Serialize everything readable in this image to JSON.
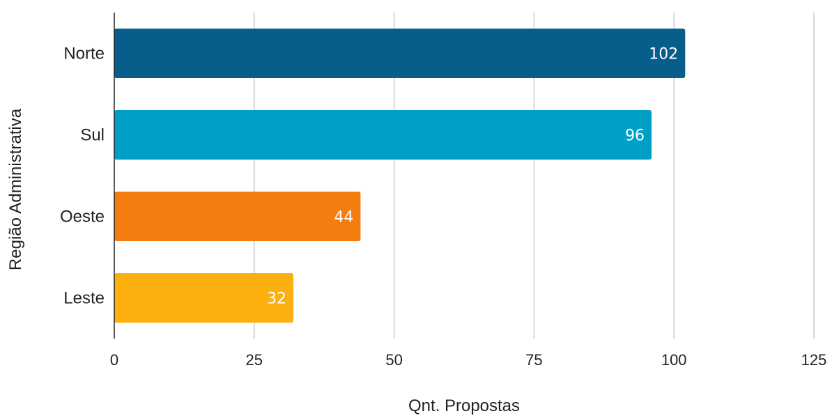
{
  "chart_data": {
    "type": "bar",
    "orientation": "horizontal",
    "categories": [
      "Norte",
      "Sul",
      "Oeste",
      "Leste"
    ],
    "values": [
      102,
      96,
      44,
      32
    ],
    "data_labels": [
      "102",
      "96",
      "44",
      "32"
    ],
    "colors": [
      "#075E8A",
      "#00A0C6",
      "#F57C0E",
      "#FBB00F"
    ],
    "xlabel": "Qnt. Propostas",
    "ylabel": "Região Administrativa",
    "xlim": [
      0,
      125
    ],
    "x_ticks": [
      "0",
      "25",
      "50",
      "75",
      "100",
      "125"
    ],
    "grid": "vertical",
    "legend": "none"
  }
}
